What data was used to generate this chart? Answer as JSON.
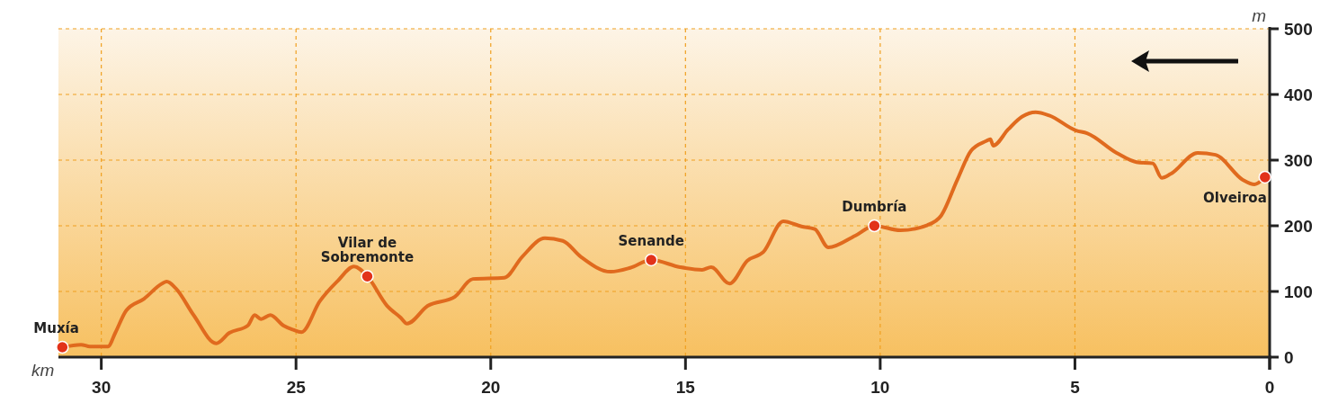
{
  "chart_data": {
    "type": "line",
    "xlabel": "km",
    "ylabel": "m",
    "xlim": [
      31.1,
      0
    ],
    "xticks": [
      30,
      25,
      20,
      15,
      10,
      5,
      0
    ],
    "ylim": [
      0,
      500
    ],
    "yticks": [
      0,
      100,
      200,
      300,
      400,
      500
    ],
    "grid": true,
    "series": [
      {
        "color": "#e06a1e",
        "x": [
          31.0,
          30.52,
          30.29,
          29.83,
          29.64,
          29.36,
          28.9,
          28.44,
          28.32,
          28.09,
          27.63,
          27.05,
          26.71,
          26.24,
          26.06,
          25.9,
          25.66,
          25.32,
          25.09,
          24.86,
          24.39,
          23.93,
          23.51,
          23.17,
          22.66,
          22.31,
          22.15,
          21.62,
          20.92,
          20.46,
          19.65,
          19.19,
          18.61,
          18.15,
          17.69,
          16.92,
          16.42,
          15.88,
          15.14,
          14.57,
          14.34,
          13.87,
          13.41,
          13.0,
          12.49,
          12.02,
          11.68,
          11.33,
          10.64,
          10.15,
          9.48,
          8.79,
          8.44,
          8.02,
          7.67,
          7.28,
          7.17,
          7.1,
          6.71,
          6.36,
          6.01,
          5.66,
          4.97,
          4.69,
          3.93,
          3.42,
          3.0,
          2.77,
          2.54,
          1.85,
          1.39,
          0.69,
          0.39,
          0.12
        ],
        "values": [
          15,
          19,
          16,
          16,
          37,
          71,
          89,
          112,
          115,
          105,
          64,
          21,
          37,
          48,
          64,
          58,
          64,
          48,
          42,
          38,
          85,
          116,
          138,
          123,
          78,
          60,
          51,
          78,
          92,
          119,
          121,
          153,
          181,
          177,
          153,
          130,
          136,
          148,
          137,
          133,
          137,
          112,
          147,
          160,
          207,
          199,
          195,
          167,
          185,
          200,
          193,
          201,
          215,
          270,
          314,
          329,
          332,
          322,
          347,
          366,
          373,
          368,
          345,
          341,
          311,
          297,
          295,
          273,
          279,
          311,
          308,
          270,
          263,
          274
        ]
      }
    ],
    "annotations": [
      {
        "text": "Muxía",
        "x": 31.0,
        "y": 15
      },
      {
        "text": "Vilar de\nSobremonte",
        "x": 23.17,
        "y": 123
      },
      {
        "text": "Senande",
        "x": 15.88,
        "y": 148
      },
      {
        "text": "Dumbría",
        "x": 10.15,
        "y": 200
      },
      {
        "text": "Olveiroa",
        "x": 0.12,
        "y": 274
      }
    ]
  }
}
